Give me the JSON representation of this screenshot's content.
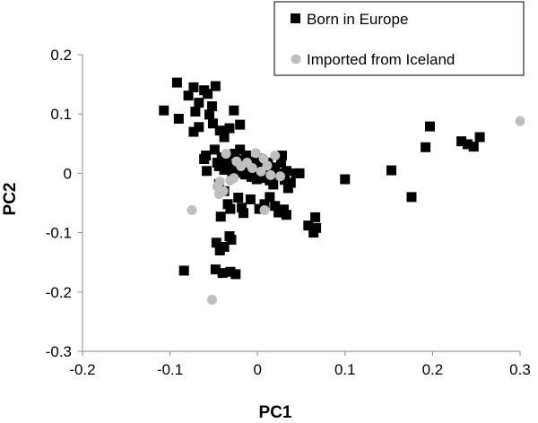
{
  "chart_data": {
    "type": "scatter",
    "title": "",
    "xlabel": "PC1",
    "ylabel": "PC2",
    "xlim": [
      -0.2,
      0.3
    ],
    "ylim": [
      -0.3,
      0.2
    ],
    "x_ticks": [
      -0.2,
      -0.1,
      0,
      0.1,
      0.2,
      0.3
    ],
    "y_ticks": [
      -0.3,
      -0.2,
      -0.1,
      0,
      0.1,
      0.2
    ],
    "x_tick_labels": [
      "-0.2",
      "-0.1",
      "0",
      "0.1",
      "0.2",
      "0.3"
    ],
    "y_tick_labels": [
      "-0.3",
      "-0.2",
      "-0.1",
      "0",
      "0.1",
      "0.2"
    ],
    "grid": false,
    "legend_position": "top-right",
    "series": [
      {
        "name": "Born in Europe",
        "marker": "square",
        "color": "#000000",
        "points": [
          [
            -0.107,
            0.106
          ],
          [
            -0.092,
            0.153
          ],
          [
            -0.09,
            0.092
          ],
          [
            -0.079,
            0.131
          ],
          [
            -0.073,
            0.145
          ],
          [
            -0.067,
            0.119
          ],
          [
            -0.061,
            0.14
          ],
          [
            -0.057,
            0.134
          ],
          [
            -0.052,
            0.113
          ],
          [
            -0.048,
            0.147
          ],
          [
            -0.051,
            0.084
          ],
          [
            -0.055,
            0.099
          ],
          [
            -0.071,
            0.104
          ],
          [
            -0.073,
            0.07
          ],
          [
            -0.067,
            0.078
          ],
          [
            -0.032,
            0.076
          ],
          [
            -0.027,
            0.106
          ],
          [
            -0.02,
            0.082
          ],
          [
            -0.043,
            0.072
          ],
          [
            -0.038,
            0.061
          ],
          [
            -0.061,
            0.024
          ],
          [
            -0.059,
            0.03
          ],
          [
            -0.058,
            0.004
          ],
          [
            -0.049,
            0.04
          ],
          [
            -0.046,
            0.018
          ],
          [
            -0.044,
            0.012
          ],
          [
            -0.041,
            0.027
          ],
          [
            -0.038,
            0.006
          ],
          [
            -0.035,
            0.02
          ],
          [
            -0.031,
            0.013
          ],
          [
            -0.029,
            0.0
          ],
          [
            -0.026,
            0.033
          ],
          [
            -0.024,
            0.01
          ],
          [
            -0.022,
            0.001
          ],
          [
            -0.02,
            0.04
          ],
          [
            -0.018,
            0.022
          ],
          [
            -0.016,
            0.009
          ],
          [
            -0.014,
            -0.002
          ],
          [
            -0.013,
            0.03
          ],
          [
            -0.011,
            0.015
          ],
          [
            -0.009,
            0.005
          ],
          [
            -0.007,
            -0.006
          ],
          [
            -0.006,
            0.02
          ],
          [
            -0.005,
            0.0
          ],
          [
            -0.003,
            0.012
          ],
          [
            -0.001,
            -0.01
          ],
          [
            0.001,
            0.025
          ],
          [
            0.002,
            0.008
          ],
          [
            0.004,
            -0.004
          ],
          [
            0.006,
            0.015
          ],
          [
            0.008,
            -0.008
          ],
          [
            0.01,
            0.004
          ],
          [
            0.012,
            0.018
          ],
          [
            0.014,
            -0.012
          ],
          [
            0.016,
            0.002
          ],
          [
            0.018,
            -0.019
          ],
          [
            0.02,
            0.01
          ],
          [
            0.022,
            -0.002
          ],
          [
            0.024,
            0.0
          ],
          [
            0.027,
            0.018
          ],
          [
            0.028,
            0.03
          ],
          [
            0.031,
            -0.011
          ],
          [
            0.033,
            0.004
          ],
          [
            0.035,
            -0.025
          ],
          [
            0.038,
            -0.016
          ],
          [
            0.044,
            0.0
          ],
          [
            0.048,
            0.0
          ],
          [
            -0.044,
            -0.018
          ],
          [
            -0.038,
            -0.03
          ],
          [
            -0.034,
            -0.052
          ],
          [
            -0.031,
            -0.06
          ],
          [
            -0.022,
            -0.041
          ],
          [
            -0.018,
            -0.058
          ],
          [
            -0.016,
            -0.067
          ],
          [
            -0.008,
            -0.044
          ],
          [
            0.002,
            -0.06
          ],
          [
            0.008,
            -0.052
          ],
          [
            0.014,
            -0.04
          ],
          [
            0.02,
            -0.055
          ],
          [
            0.024,
            -0.066
          ],
          [
            0.03,
            -0.061
          ],
          [
            0.033,
            -0.07
          ],
          [
            0.058,
            -0.088
          ],
          [
            0.064,
            -0.1
          ],
          [
            0.066,
            -0.074
          ],
          [
            0.067,
            -0.092
          ],
          [
            -0.042,
            -0.073
          ],
          [
            -0.047,
            -0.117
          ],
          [
            -0.043,
            -0.13
          ],
          [
            -0.038,
            -0.124
          ],
          [
            -0.032,
            -0.106
          ],
          [
            -0.03,
            -0.112
          ],
          [
            -0.084,
            -0.164
          ],
          [
            -0.048,
            -0.162
          ],
          [
            -0.04,
            -0.168
          ],
          [
            -0.031,
            -0.166
          ],
          [
            -0.025,
            -0.17
          ],
          [
            0.1,
            -0.01
          ],
          [
            0.153,
            0.005
          ],
          [
            0.176,
            -0.04
          ],
          [
            0.192,
            0.044
          ],
          [
            0.197,
            0.079
          ],
          [
            0.233,
            0.054
          ],
          [
            0.24,
            0.049
          ],
          [
            0.247,
            0.045
          ],
          [
            0.254,
            0.061
          ]
        ]
      },
      {
        "name": "Imported from Iceland",
        "marker": "circle",
        "color": "#bfbfbf",
        "points": [
          [
            -0.036,
            0.033
          ],
          [
            -0.024,
            0.02
          ],
          [
            -0.019,
            0.012
          ],
          [
            -0.012,
            0.018
          ],
          [
            -0.006,
            0.009
          ],
          [
            -0.002,
            0.034
          ],
          [
            0.004,
            0.003
          ],
          [
            0.007,
            0.025
          ],
          [
            0.011,
            0.013
          ],
          [
            0.015,
            -0.003
          ],
          [
            0.02,
            0.03
          ],
          [
            0.026,
            -0.005
          ],
          [
            -0.043,
            -0.014
          ],
          [
            -0.046,
            -0.022
          ],
          [
            -0.039,
            -0.03
          ],
          [
            -0.044,
            -0.035
          ],
          [
            -0.031,
            -0.012
          ],
          [
            -0.027,
            -0.008
          ],
          [
            0.008,
            -0.062
          ],
          [
            -0.075,
            -0.062
          ],
          [
            -0.052,
            -0.213
          ],
          [
            0.3,
            0.088
          ]
        ]
      }
    ]
  },
  "legend": {
    "items": [
      "Born in Europe",
      "Imported from Iceland"
    ]
  }
}
